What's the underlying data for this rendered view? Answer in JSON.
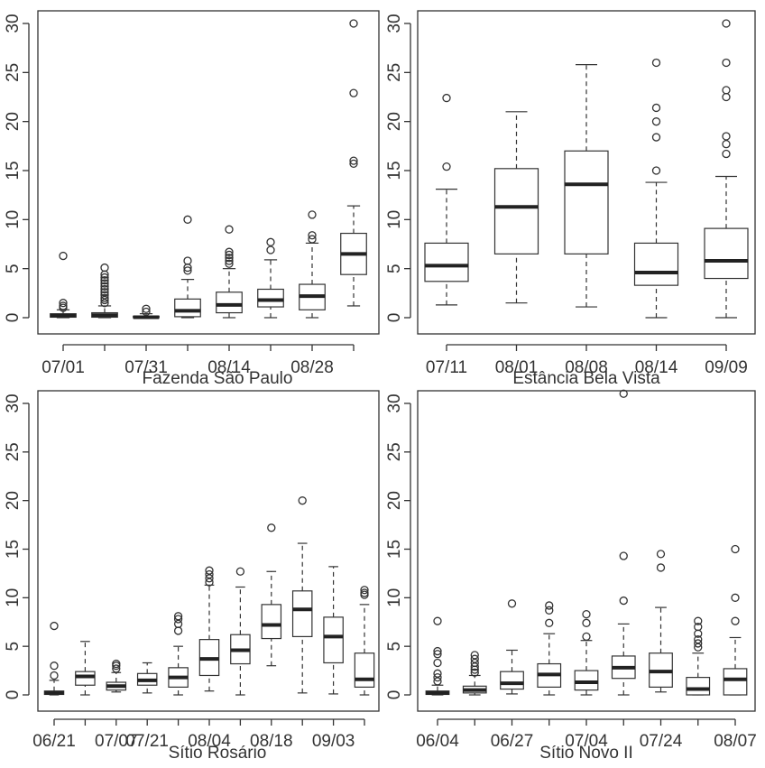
{
  "chart_data": [
    {
      "type": "boxplot",
      "title": "Fazenda São Paulo",
      "ylim": [
        0,
        30
      ],
      "yticks": [
        0,
        5,
        10,
        15,
        20,
        25,
        30
      ],
      "xticklabels": [
        "07/01",
        "07/31",
        "08/14",
        "08/28"
      ],
      "xtick_positions": [
        1,
        3,
        5,
        7
      ],
      "boxes": [
        {
          "x": 1,
          "min": 0,
          "q1": 0.05,
          "median": 0.2,
          "q3": 0.4,
          "max": 0.8,
          "outliers": [
            1.0,
            1.2,
            1.5,
            6.3
          ]
        },
        {
          "x": 2,
          "min": 0,
          "q1": 0.05,
          "median": 0.25,
          "q3": 0.5,
          "max": 1.2,
          "outliers": [
            1.5,
            1.8,
            2.0,
            2.3,
            2.6,
            2.9,
            3.2,
            3.5,
            3.8,
            4.1,
            4.4,
            5.1
          ]
        },
        {
          "x": 3,
          "min": 0,
          "q1": 0.0,
          "median": 0.05,
          "q3": 0.15,
          "max": 0.4,
          "outliers": [
            0.6,
            0.9
          ]
        },
        {
          "x": 4,
          "min": 0,
          "q1": 0.1,
          "median": 0.7,
          "q3": 1.9,
          "max": 3.9,
          "outliers": [
            4.8,
            5.1,
            5.8,
            10.0
          ]
        },
        {
          "x": 5,
          "min": 0,
          "q1": 0.5,
          "median": 1.3,
          "q3": 2.6,
          "max": 5.0,
          "outliers": [
            5.5,
            5.8,
            6.1,
            6.4,
            6.7,
            9.0
          ]
        },
        {
          "x": 6,
          "min": 0,
          "q1": 1.1,
          "median": 1.8,
          "q3": 2.9,
          "max": 5.9,
          "outliers": [
            6.9,
            7.7
          ]
        },
        {
          "x": 7,
          "min": 0,
          "q1": 0.8,
          "median": 2.2,
          "q3": 3.4,
          "max": 7.6,
          "outliers": [
            8.0,
            8.4,
            10.5
          ]
        },
        {
          "x": 8,
          "min": 1.2,
          "q1": 4.4,
          "median": 6.5,
          "q3": 8.6,
          "max": 11.4,
          "outliers": [
            15.7,
            16.0,
            22.9,
            30.0
          ]
        }
      ]
    },
    {
      "type": "boxplot",
      "title": "Estância Bela Vista",
      "ylim": [
        0,
        30
      ],
      "yticks": [
        0,
        5,
        10,
        15,
        20,
        25,
        30
      ],
      "xticklabels": [
        "07/11",
        "08/01",
        "08/08",
        "08/14",
        "09/09"
      ],
      "xtick_positions": [
        1,
        2,
        3,
        4,
        5
      ],
      "boxes": [
        {
          "x": 1,
          "min": 1.3,
          "q1": 3.7,
          "median": 5.3,
          "q3": 7.6,
          "max": 13.1,
          "outliers": [
            15.4,
            22.4
          ]
        },
        {
          "x": 2,
          "min": 1.5,
          "q1": 6.5,
          "median": 11.3,
          "q3": 15.2,
          "max": 21.0,
          "outliers": []
        },
        {
          "x": 3,
          "min": 1.1,
          "q1": 6.5,
          "median": 13.6,
          "q3": 17.0,
          "max": 25.8,
          "outliers": []
        },
        {
          "x": 4,
          "min": 0,
          "q1": 3.3,
          "median": 4.6,
          "q3": 7.6,
          "max": 13.8,
          "outliers": [
            15.0,
            18.4,
            20.0,
            21.4,
            26.0
          ]
        },
        {
          "x": 5,
          "min": 0,
          "q1": 4.0,
          "median": 5.8,
          "q3": 9.1,
          "max": 14.4,
          "outliers": [
            16.7,
            17.7,
            18.5,
            22.5,
            23.2,
            26.0,
            30.0
          ]
        }
      ]
    },
    {
      "type": "boxplot",
      "title": "Sítio Rosário",
      "ylim": [
        0,
        30
      ],
      "yticks": [
        0,
        5,
        10,
        15,
        20,
        25,
        30
      ],
      "xticklabels": [
        "06/21",
        "07/07",
        "07/21",
        "08/04",
        "08/18",
        "09/03"
      ],
      "xtick_positions": [
        1,
        3,
        4,
        6,
        8,
        10
      ],
      "boxes": [
        {
          "x": 1,
          "min": 0,
          "q1": 0.05,
          "median": 0.2,
          "q3": 0.4,
          "max": 1.5,
          "outliers": [
            2.0,
            3.0,
            7.1
          ]
        },
        {
          "x": 2,
          "min": 0,
          "q1": 1.0,
          "median": 1.9,
          "q3": 2.4,
          "max": 5.5,
          "outliers": []
        },
        {
          "x": 3,
          "min": 0.3,
          "q1": 0.5,
          "median": 0.9,
          "q3": 1.3,
          "max": 2.3,
          "outliers": [
            2.7,
            3.0,
            3.2
          ]
        },
        {
          "x": 4,
          "min": 0.2,
          "q1": 1.0,
          "median": 1.5,
          "q3": 2.2,
          "max": 3.3,
          "outliers": []
        },
        {
          "x": 5,
          "min": 0,
          "q1": 0.8,
          "median": 1.8,
          "q3": 2.8,
          "max": 5.0,
          "outliers": [
            6.6,
            7.3,
            7.8,
            8.1
          ]
        },
        {
          "x": 6,
          "min": 0.4,
          "q1": 2.0,
          "median": 3.7,
          "q3": 5.7,
          "max": 11.3,
          "outliers": [
            11.6,
            12.0,
            12.4,
            12.8
          ]
        },
        {
          "x": 7,
          "min": 0,
          "q1": 3.2,
          "median": 4.6,
          "q3": 6.2,
          "max": 11.1,
          "outliers": [
            12.7
          ]
        },
        {
          "x": 8,
          "min": 3.0,
          "q1": 5.8,
          "median": 7.2,
          "q3": 9.3,
          "max": 12.7,
          "outliers": [
            17.2
          ]
        },
        {
          "x": 9,
          "min": 0.2,
          "q1": 6.0,
          "median": 8.8,
          "q3": 10.7,
          "max": 15.6,
          "outliers": [
            20.0
          ]
        },
        {
          "x": 10,
          "min": 0.1,
          "q1": 3.3,
          "median": 6.0,
          "q3": 8.0,
          "max": 13.2,
          "outliers": []
        },
        {
          "x": 11,
          "min": 0,
          "q1": 0.8,
          "median": 1.6,
          "q3": 4.3,
          "max": 9.3,
          "outliers": [
            10.3,
            10.5,
            10.8
          ]
        }
      ]
    },
    {
      "type": "boxplot",
      "title": "Sítio Novo II",
      "ylim": [
        0,
        30
      ],
      "yticks": [
        0,
        5,
        10,
        15,
        20,
        25,
        30
      ],
      "xticklabels": [
        "06/04",
        "06/27",
        "07/04",
        "07/24",
        "08/07"
      ],
      "xtick_positions": [
        1,
        3,
        5,
        7,
        9
      ],
      "boxes": [
        {
          "x": 1,
          "min": 0,
          "q1": 0.05,
          "median": 0.2,
          "q3": 0.4,
          "max": 1.0,
          "outliers": [
            1.4,
            1.8,
            2.2,
            3.3,
            4.2,
            4.5,
            7.6
          ]
        },
        {
          "x": 2,
          "min": 0,
          "q1": 0.2,
          "median": 0.5,
          "q3": 0.9,
          "max": 2.0,
          "outliers": [
            2.3,
            2.6,
            2.9,
            3.3,
            3.7,
            4.1
          ]
        },
        {
          "x": 3,
          "min": 0.1,
          "q1": 0.6,
          "median": 1.2,
          "q3": 2.4,
          "max": 4.6,
          "outliers": [
            9.4
          ]
        },
        {
          "x": 4,
          "min": 0,
          "q1": 0.8,
          "median": 2.1,
          "q3": 3.2,
          "max": 6.3,
          "outliers": [
            7.4,
            8.7,
            9.2
          ]
        },
        {
          "x": 5,
          "min": 0,
          "q1": 0.5,
          "median": 1.3,
          "q3": 2.5,
          "max": 5.6,
          "outliers": [
            6.0,
            7.4,
            8.3
          ]
        },
        {
          "x": 6,
          "min": 0,
          "q1": 1.7,
          "median": 2.8,
          "q3": 4.0,
          "max": 7.3,
          "outliers": [
            9.7,
            14.3,
            31.0
          ]
        },
        {
          "x": 7,
          "min": 0.3,
          "q1": 0.8,
          "median": 2.4,
          "q3": 4.3,
          "max": 9.0,
          "outliers": [
            13.1,
            14.5
          ]
        },
        {
          "x": 8,
          "min": 0,
          "q1": 0.0,
          "median": 0.6,
          "q3": 1.8,
          "max": 4.3,
          "outliers": [
            4.9,
            5.3,
            5.7,
            6.3,
            7.0,
            7.6
          ]
        },
        {
          "x": 9,
          "min": 0,
          "q1": 0.0,
          "median": 1.6,
          "q3": 2.7,
          "max": 5.9,
          "outliers": [
            7.6,
            10.0,
            15.0
          ]
        }
      ]
    }
  ]
}
